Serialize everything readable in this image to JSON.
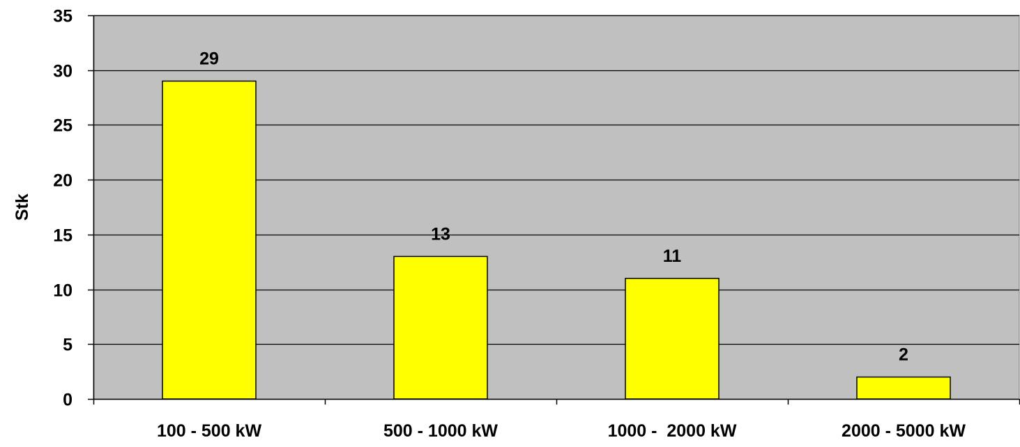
{
  "chart_data": {
    "type": "bar",
    "title": "",
    "xlabel": "",
    "ylabel": "Stk",
    "categories": [
      "100 - 500 kW",
      "500 - 1000 kW",
      "1000 -  2000 kW",
      "2000 - 5000 kW"
    ],
    "values": [
      29,
      13,
      11,
      2
    ],
    "data_labels": [
      "29",
      "13",
      "11",
      "2"
    ],
    "ylim": [
      0,
      35
    ],
    "yticks": [
      0,
      5,
      10,
      15,
      20,
      25,
      30,
      35
    ],
    "grid": true,
    "legend": "none",
    "colors": {
      "plot_background": "#C0C0C0",
      "bar_fill": "#FFFF00",
      "bar_stroke": "#000000",
      "grid": "#000000"
    }
  }
}
